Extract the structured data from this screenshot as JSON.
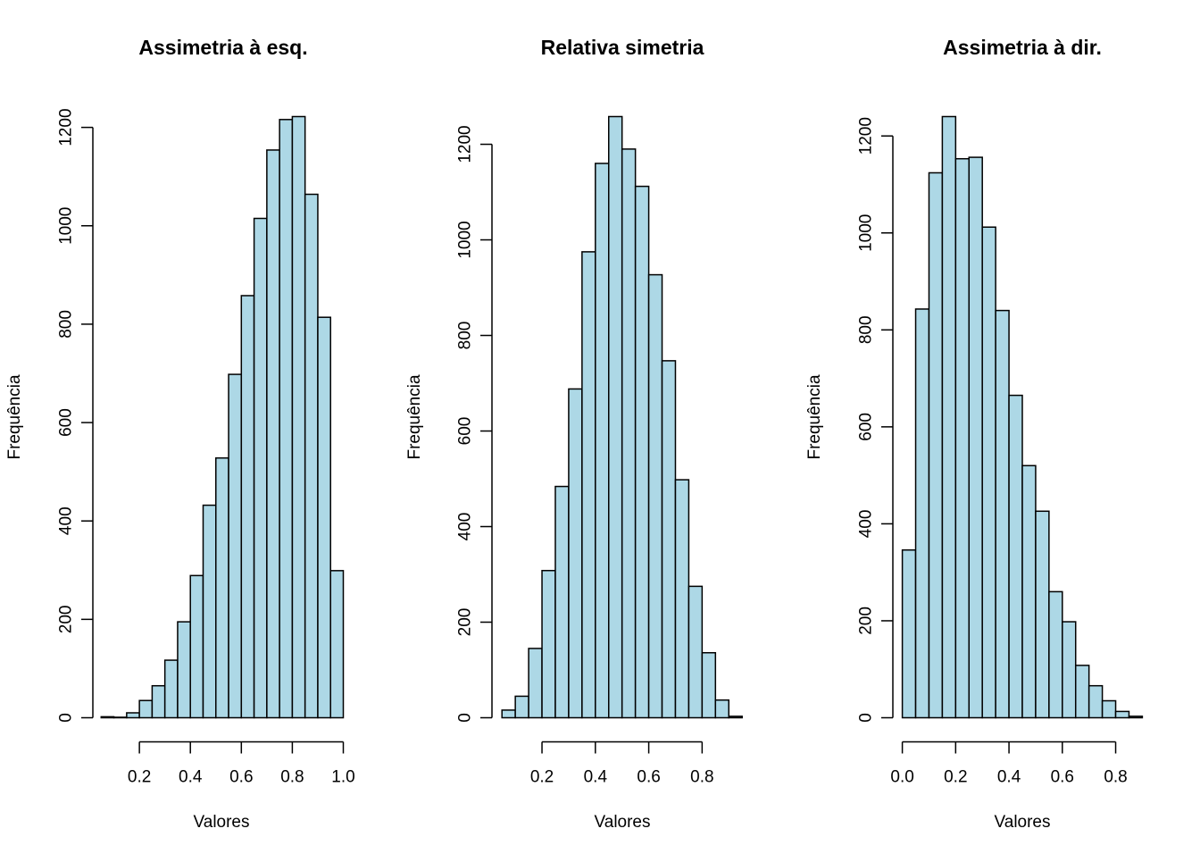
{
  "colors": {
    "bar_fill": "#add8e6",
    "stroke": "#000000",
    "background": "#ffffff"
  },
  "chart_data": [
    {
      "type": "bar",
      "title": "Assimetria à esq.",
      "xlabel": "Valores",
      "ylabel": "Frequência",
      "bin_width": 0.05,
      "bin_starts": [
        0.05,
        0.1,
        0.15,
        0.2,
        0.25,
        0.3,
        0.35,
        0.4,
        0.45,
        0.5,
        0.55,
        0.6,
        0.65,
        0.7,
        0.75,
        0.8,
        0.85,
        0.9,
        0.95
      ],
      "values": [
        2,
        1,
        10,
        35,
        65,
        117,
        195,
        289,
        432,
        528,
        698,
        858,
        1015,
        1154,
        1216,
        1222,
        1064,
        814,
        299
      ],
      "xlim": [
        0.05,
        1.0
      ],
      "ylim": [
        0,
        1222
      ],
      "x_ticks": [
        0.2,
        0.4,
        0.6,
        0.8,
        1.0
      ],
      "x_tick_labels": [
        "0.2",
        "0.4",
        "0.6",
        "0.8",
        "1.0"
      ],
      "y_ticks": [
        0,
        200,
        400,
        600,
        800,
        1000,
        1200
      ],
      "y_tick_labels": [
        "0",
        "200",
        "400",
        "600",
        "800",
        "1000",
        "1200"
      ]
    },
    {
      "type": "bar",
      "title": "Relativa simetria",
      "xlabel": "Valores",
      "ylabel": "Frequência",
      "bin_width": 0.05,
      "bin_starts": [
        0.05,
        0.1,
        0.15,
        0.2,
        0.25,
        0.3,
        0.35,
        0.4,
        0.45,
        0.5,
        0.55,
        0.6,
        0.65,
        0.7,
        0.75,
        0.8,
        0.85,
        0.9
      ],
      "values": [
        16,
        45,
        145,
        308,
        484,
        688,
        975,
        1160,
        1258,
        1190,
        1112,
        927,
        747,
        498,
        275,
        136,
        37,
        3
      ],
      "xlim": [
        0.05,
        0.95
      ],
      "ylim": [
        0,
        1258
      ],
      "x_ticks": [
        0.2,
        0.4,
        0.6,
        0.8
      ],
      "x_tick_labels": [
        "0.2",
        "0.4",
        "0.6",
        "0.8"
      ],
      "y_ticks": [
        0,
        200,
        400,
        600,
        800,
        1000,
        1200
      ],
      "y_tick_labels": [
        "0",
        "200",
        "400",
        "600",
        "800",
        "1000",
        "1200"
      ]
    },
    {
      "type": "bar",
      "title": "Assimetria à dir.",
      "xlabel": "Valores",
      "ylabel": "Frequência",
      "bin_width": 0.05,
      "bin_starts": [
        0.0,
        0.05,
        0.1,
        0.15,
        0.2,
        0.25,
        0.3,
        0.35,
        0.4,
        0.45,
        0.5,
        0.55,
        0.6,
        0.65,
        0.7,
        0.75,
        0.8,
        0.85
      ],
      "values": [
        346,
        843,
        1124,
        1240,
        1153,
        1156,
        1012,
        840,
        665,
        520,
        426,
        260,
        198,
        108,
        66,
        35,
        13,
        3
      ],
      "xlim": [
        0.0,
        0.9
      ],
      "ylim": [
        0,
        1240
      ],
      "x_ticks": [
        0.0,
        0.2,
        0.4,
        0.6,
        0.8
      ],
      "x_tick_labels": [
        "0.0",
        "0.2",
        "0.4",
        "0.6",
        "0.8"
      ],
      "y_ticks": [
        0,
        200,
        400,
        600,
        800,
        1000,
        1200
      ],
      "y_tick_labels": [
        "0",
        "200",
        "400",
        "600",
        "800",
        "1000",
        "1200"
      ]
    }
  ]
}
